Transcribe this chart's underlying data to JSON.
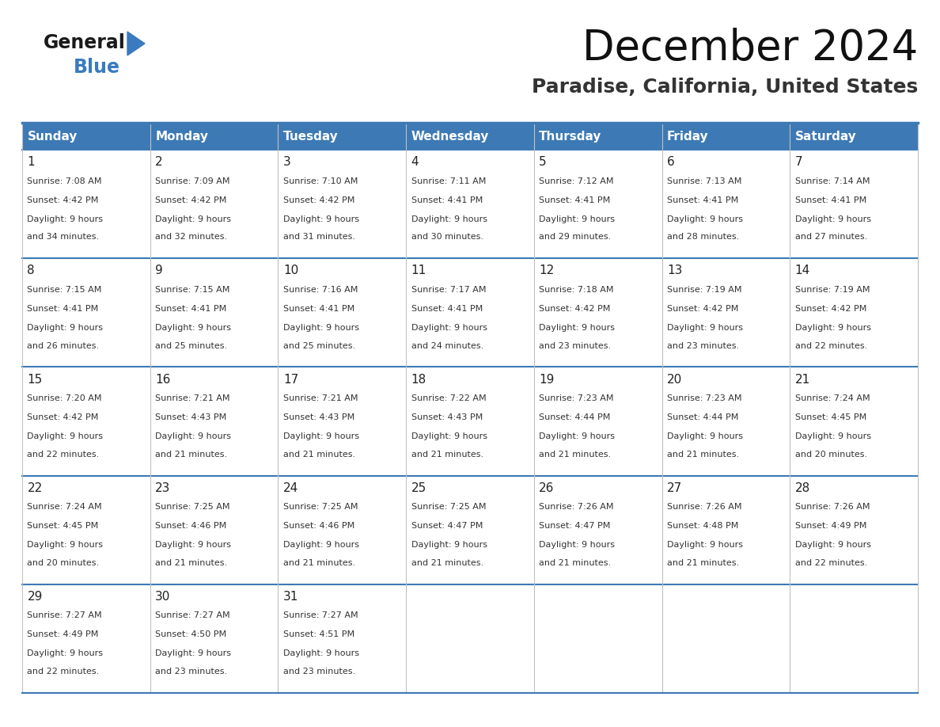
{
  "title": "December 2024",
  "subtitle": "Paradise, California, United States",
  "header_color": "#3d7ab5",
  "header_text_color": "#ffffff",
  "day_names": [
    "Sunday",
    "Monday",
    "Tuesday",
    "Wednesday",
    "Thursday",
    "Friday",
    "Saturday"
  ],
  "days": [
    {
      "day": 1,
      "col": 0,
      "row": 0,
      "sunrise": "7:08 AM",
      "sunset": "4:42 PM",
      "daylight": "9 hours and 34 minutes."
    },
    {
      "day": 2,
      "col": 1,
      "row": 0,
      "sunrise": "7:09 AM",
      "sunset": "4:42 PM",
      "daylight": "9 hours and 32 minutes."
    },
    {
      "day": 3,
      "col": 2,
      "row": 0,
      "sunrise": "7:10 AM",
      "sunset": "4:42 PM",
      "daylight": "9 hours and 31 minutes."
    },
    {
      "day": 4,
      "col": 3,
      "row": 0,
      "sunrise": "7:11 AM",
      "sunset": "4:41 PM",
      "daylight": "9 hours and 30 minutes."
    },
    {
      "day": 5,
      "col": 4,
      "row": 0,
      "sunrise": "7:12 AM",
      "sunset": "4:41 PM",
      "daylight": "9 hours and 29 minutes."
    },
    {
      "day": 6,
      "col": 5,
      "row": 0,
      "sunrise": "7:13 AM",
      "sunset": "4:41 PM",
      "daylight": "9 hours and 28 minutes."
    },
    {
      "day": 7,
      "col": 6,
      "row": 0,
      "sunrise": "7:14 AM",
      "sunset": "4:41 PM",
      "daylight": "9 hours and 27 minutes."
    },
    {
      "day": 8,
      "col": 0,
      "row": 1,
      "sunrise": "7:15 AM",
      "sunset": "4:41 PM",
      "daylight": "9 hours and 26 minutes."
    },
    {
      "day": 9,
      "col": 1,
      "row": 1,
      "sunrise": "7:15 AM",
      "sunset": "4:41 PM",
      "daylight": "9 hours and 25 minutes."
    },
    {
      "day": 10,
      "col": 2,
      "row": 1,
      "sunrise": "7:16 AM",
      "sunset": "4:41 PM",
      "daylight": "9 hours and 25 minutes."
    },
    {
      "day": 11,
      "col": 3,
      "row": 1,
      "sunrise": "7:17 AM",
      "sunset": "4:41 PM",
      "daylight": "9 hours and 24 minutes."
    },
    {
      "day": 12,
      "col": 4,
      "row": 1,
      "sunrise": "7:18 AM",
      "sunset": "4:42 PM",
      "daylight": "9 hours and 23 minutes."
    },
    {
      "day": 13,
      "col": 5,
      "row": 1,
      "sunrise": "7:19 AM",
      "sunset": "4:42 PM",
      "daylight": "9 hours and 23 minutes."
    },
    {
      "day": 14,
      "col": 6,
      "row": 1,
      "sunrise": "7:19 AM",
      "sunset": "4:42 PM",
      "daylight": "9 hours and 22 minutes."
    },
    {
      "day": 15,
      "col": 0,
      "row": 2,
      "sunrise": "7:20 AM",
      "sunset": "4:42 PM",
      "daylight": "9 hours and 22 minutes."
    },
    {
      "day": 16,
      "col": 1,
      "row": 2,
      "sunrise": "7:21 AM",
      "sunset": "4:43 PM",
      "daylight": "9 hours and 21 minutes."
    },
    {
      "day": 17,
      "col": 2,
      "row": 2,
      "sunrise": "7:21 AM",
      "sunset": "4:43 PM",
      "daylight": "9 hours and 21 minutes."
    },
    {
      "day": 18,
      "col": 3,
      "row": 2,
      "sunrise": "7:22 AM",
      "sunset": "4:43 PM",
      "daylight": "9 hours and 21 minutes."
    },
    {
      "day": 19,
      "col": 4,
      "row": 2,
      "sunrise": "7:23 AM",
      "sunset": "4:44 PM",
      "daylight": "9 hours and 21 minutes."
    },
    {
      "day": 20,
      "col": 5,
      "row": 2,
      "sunrise": "7:23 AM",
      "sunset": "4:44 PM",
      "daylight": "9 hours and 21 minutes."
    },
    {
      "day": 21,
      "col": 6,
      "row": 2,
      "sunrise": "7:24 AM",
      "sunset": "4:45 PM",
      "daylight": "9 hours and 20 minutes."
    },
    {
      "day": 22,
      "col": 0,
      "row": 3,
      "sunrise": "7:24 AM",
      "sunset": "4:45 PM",
      "daylight": "9 hours and 20 minutes."
    },
    {
      "day": 23,
      "col": 1,
      "row": 3,
      "sunrise": "7:25 AM",
      "sunset": "4:46 PM",
      "daylight": "9 hours and 21 minutes."
    },
    {
      "day": 24,
      "col": 2,
      "row": 3,
      "sunrise": "7:25 AM",
      "sunset": "4:46 PM",
      "daylight": "9 hours and 21 minutes."
    },
    {
      "day": 25,
      "col": 3,
      "row": 3,
      "sunrise": "7:25 AM",
      "sunset": "4:47 PM",
      "daylight": "9 hours and 21 minutes."
    },
    {
      "day": 26,
      "col": 4,
      "row": 3,
      "sunrise": "7:26 AM",
      "sunset": "4:47 PM",
      "daylight": "9 hours and 21 minutes."
    },
    {
      "day": 27,
      "col": 5,
      "row": 3,
      "sunrise": "7:26 AM",
      "sunset": "4:48 PM",
      "daylight": "9 hours and 21 minutes."
    },
    {
      "day": 28,
      "col": 6,
      "row": 3,
      "sunrise": "7:26 AM",
      "sunset": "4:49 PM",
      "daylight": "9 hours and 22 minutes."
    },
    {
      "day": 29,
      "col": 0,
      "row": 4,
      "sunrise": "7:27 AM",
      "sunset": "4:49 PM",
      "daylight": "9 hours and 22 minutes."
    },
    {
      "day": 30,
      "col": 1,
      "row": 4,
      "sunrise": "7:27 AM",
      "sunset": "4:50 PM",
      "daylight": "9 hours and 23 minutes."
    },
    {
      "day": 31,
      "col": 2,
      "row": 4,
      "sunrise": "7:27 AM",
      "sunset": "4:51 PM",
      "daylight": "9 hours and 23 minutes."
    }
  ],
  "num_rows": 5,
  "num_cols": 7,
  "header_color_hex": "#3d7ab5",
  "border_color": "#3d7ab5",
  "row_sep_color": "#3d7ab5",
  "col_sep_color": "#c0c0c0",
  "logo_general_color": "#1a1a1a",
  "logo_blue_color": "#3a7bbf",
  "title_fontsize": 38,
  "subtitle_fontsize": 18,
  "header_fontsize": 11,
  "day_num_fontsize": 11,
  "cell_text_fontsize": 8
}
